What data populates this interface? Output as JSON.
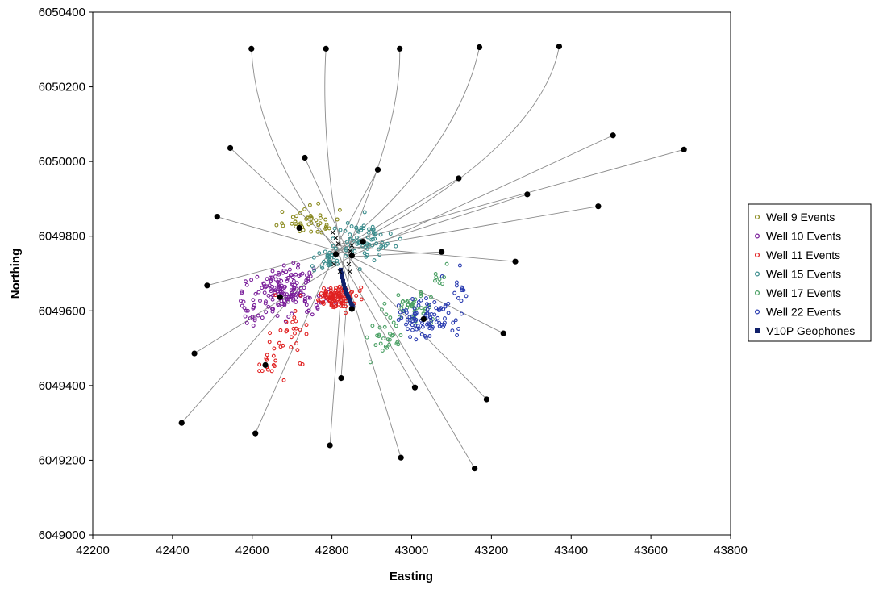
{
  "chart_data": {
    "type": "scatter",
    "title": "",
    "xlabel": "Easting",
    "ylabel": "Northing",
    "xlim": [
      42200,
      43800
    ],
    "ylim": [
      6049000,
      6050400
    ],
    "x_ticks": [
      42200,
      42400,
      42600,
      42800,
      43000,
      43200,
      43400,
      43600,
      43800
    ],
    "y_ticks": [
      6049000,
      6049200,
      6049400,
      6049600,
      6049800,
      6050000,
      6050200,
      6050400
    ],
    "grid": false,
    "legend_position": "right",
    "legend": [
      {
        "label": "Well 9 Events",
        "color": "#8a8a1e",
        "marker": "open-circle"
      },
      {
        "label": "Well 10 Events",
        "color": "#7a1f9a",
        "marker": "open-circle"
      },
      {
        "label": "Well 11 Events",
        "color": "#e02020",
        "marker": "open-circle"
      },
      {
        "label": "Well 15 Events",
        "color": "#3a8c8c",
        "marker": "open-circle"
      },
      {
        "label": "Well 17 Events",
        "color": "#4aa064",
        "marker": "open-circle"
      },
      {
        "label": "Well 22 Events",
        "color": "#2a3cb0",
        "marker": "open-circle"
      },
      {
        "label": "V10P Geophones",
        "color": "#10206a",
        "marker": "square"
      }
    ],
    "event_clusters": [
      {
        "series": "Well 9 Events",
        "color": "#8a8a1e",
        "count": 45,
        "center": [
          42740,
          6049840
        ],
        "spread": [
          35,
          20
        ],
        "seed": 11
      },
      {
        "series": "Well 10 Events",
        "color": "#7a1f9a",
        "count": 150,
        "center": [
          42690,
          6049650
        ],
        "spread": [
          40,
          35
        ],
        "seed": 22
      },
      {
        "series": "Well 10 Events",
        "color": "#7a1f9a",
        "count": 25,
        "center": [
          42610,
          6049610
        ],
        "spread": [
          25,
          30
        ],
        "seed": 23
      },
      {
        "series": "Well 11 Events",
        "color": "#e02020",
        "count": 110,
        "center": [
          42810,
          6049635
        ],
        "spread": [
          25,
          15
        ],
        "seed": 33
      },
      {
        "series": "Well 11 Events",
        "color": "#e02020",
        "count": 30,
        "center": [
          42700,
          6049520
        ],
        "spread": [
          25,
          50
        ],
        "seed": 34
      },
      {
        "series": "Well 11 Events",
        "color": "#e02020",
        "count": 12,
        "center": [
          42640,
          6049455
        ],
        "spread": [
          12,
          18
        ],
        "seed": 35
      },
      {
        "series": "Well 15 Events",
        "color": "#3a8c8c",
        "count": 70,
        "center": [
          42880,
          6049790
        ],
        "spread": [
          40,
          25
        ],
        "seed": 44
      },
      {
        "series": "Well 15 Events",
        "color": "#3a8c8c",
        "count": 30,
        "center": [
          42790,
          6049735
        ],
        "spread": [
          18,
          15
        ],
        "seed": 45
      },
      {
        "series": "Well 17 Events",
        "color": "#4aa064",
        "count": 45,
        "center": [
          43010,
          6049605
        ],
        "spread": [
          30,
          20
        ],
        "seed": 55
      },
      {
        "series": "Well 17 Events",
        "color": "#4aa064",
        "count": 25,
        "center": [
          42930,
          6049530
        ],
        "spread": [
          25,
          20
        ],
        "seed": 56
      },
      {
        "series": "Well 17 Events",
        "color": "#4aa064",
        "count": 8,
        "center": [
          43070,
          6049690
        ],
        "spread": [
          10,
          15
        ],
        "seed": 57
      },
      {
        "series": "Well 22 Events",
        "color": "#2a3cb0",
        "count": 90,
        "center": [
          43030,
          6049575
        ],
        "spread": [
          40,
          25
        ],
        "seed": 66
      },
      {
        "series": "Well 22 Events",
        "color": "#2a3cb0",
        "count": 12,
        "center": [
          43120,
          6049650
        ],
        "spread": [
          15,
          25
        ],
        "seed": 67
      }
    ],
    "geophones": {
      "series": "V10P Geophones",
      "color": "#10206a",
      "x": [
        42822,
        42824,
        42826,
        42828,
        42830,
        42832,
        42834,
        42836,
        42838,
        42840,
        42842,
        42844,
        42846,
        42848,
        42850,
        42852
      ],
      "y": [
        6049710,
        6049700,
        6049690,
        6049680,
        6049670,
        6049660,
        6049655,
        6049650,
        6049645,
        6049640,
        6049635,
        6049630,
        6049625,
        6049620,
        6049615,
        6049612
      ]
    },
    "well_paths": [
      {
        "name": "north-lateral-1",
        "end": [
          42598,
          6050302
        ],
        "control": [
          [
            42818,
            6049760
          ],
          [
            42612,
            6050000
          ]
        ]
      },
      {
        "name": "north-lateral-2",
        "end": [
          42785,
          6050302
        ],
        "control": [
          [
            42818,
            6049760
          ],
          [
            42770,
            6050050
          ]
        ]
      },
      {
        "name": "north-lateral-3",
        "end": [
          42970,
          6050302
        ],
        "control": [
          [
            42818,
            6049760
          ],
          [
            42975,
            6050050
          ]
        ]
      },
      {
        "name": "north-lateral-4",
        "end": [
          43170,
          6050306
        ],
        "control": [
          [
            42818,
            6049760
          ],
          [
            43110,
            6050000
          ]
        ]
      },
      {
        "name": "north-lateral-5",
        "end": [
          43370,
          6050308
        ],
        "control": [
          [
            42818,
            6049760
          ],
          [
            43320,
            6050000
          ]
        ]
      },
      {
        "name": "deviated-nw-1",
        "end": [
          42545,
          6050036
        ],
        "control": null
      },
      {
        "name": "deviated-nw-2",
        "end": [
          42732,
          6050010
        ],
        "control": null
      },
      {
        "name": "deviated-n-1",
        "end": [
          42915,
          6049978
        ],
        "control": null
      },
      {
        "name": "deviated-ne-1",
        "end": [
          43118,
          6049955
        ],
        "control": null
      },
      {
        "name": "deviated-ne-2",
        "end": [
          43290,
          6049912
        ],
        "control": null
      },
      {
        "name": "deviated-ne-3",
        "end": [
          43505,
          6050070
        ],
        "control": null
      },
      {
        "name": "deviated-ne-4",
        "end": [
          43683,
          6050032
        ],
        "control": null
      },
      {
        "name": "deviated-e-1",
        "end": [
          43468,
          6049880
        ],
        "control": null
      },
      {
        "name": "deviated-w-1",
        "end": [
          42512,
          6049852
        ],
        "control": null
      },
      {
        "name": "deviated-e-2",
        "end": [
          43075,
          6049758
        ],
        "control": null
      },
      {
        "name": "deviated-e-3",
        "end": [
          43260,
          6049732
        ],
        "control": null
      },
      {
        "name": "deviated-w-2",
        "end": [
          42487,
          6049668
        ],
        "control": null
      },
      {
        "name": "deviated-se-1",
        "end": [
          43230,
          6049540
        ],
        "control": null
      },
      {
        "name": "deviated-sw-1",
        "end": [
          42455,
          6049486
        ],
        "control": null
      },
      {
        "name": "deviated-sw-2",
        "end": [
          42423,
          6049300
        ],
        "control": null
      },
      {
        "name": "deviated-sw-3",
        "end": [
          42608,
          6049272
        ],
        "control": null
      },
      {
        "name": "deviated-s-1",
        "end": [
          42795,
          6049240
        ],
        "control": null
      },
      {
        "name": "deviated-s-2",
        "end": [
          42823,
          6049420
        ],
        "control": null
      },
      {
        "name": "deviated-s-3",
        "end": [
          42973,
          6049207
        ],
        "control": null
      },
      {
        "name": "deviated-s-4",
        "end": [
          43008,
          6049395
        ],
        "control": null
      },
      {
        "name": "deviated-se-2",
        "end": [
          43188,
          6049363
        ],
        "control": null
      },
      {
        "name": "deviated-se-3",
        "end": [
          43158,
          6049178
        ],
        "control": null
      }
    ],
    "path_origins": [
      [
        42810,
        6049760
      ],
      [
        42830,
        6049755
      ],
      [
        42845,
        6049745
      ],
      [
        42812,
        6049775
      ]
    ],
    "inner_well_markers": [
      [
        42633,
        6049455
      ],
      [
        42670,
        6049637
      ],
      [
        42850,
        6049605
      ],
      [
        43030,
        6049578
      ],
      [
        42878,
        6049785
      ],
      [
        42718,
        6049822
      ],
      [
        42850,
        6049748
      ],
      [
        42810,
        6049752
      ]
    ],
    "crossing_markers": [
      [
        42802,
        6049810
      ],
      [
        42810,
        6049795
      ],
      [
        42816,
        6049780
      ],
      [
        42805,
        6049725
      ],
      [
        42820,
        6049705
      ],
      [
        42842,
        6049725
      ],
      [
        42846,
        6049760
      ],
      [
        42850,
        6049775
      ],
      [
        42845,
        6049705
      ]
    ]
  }
}
